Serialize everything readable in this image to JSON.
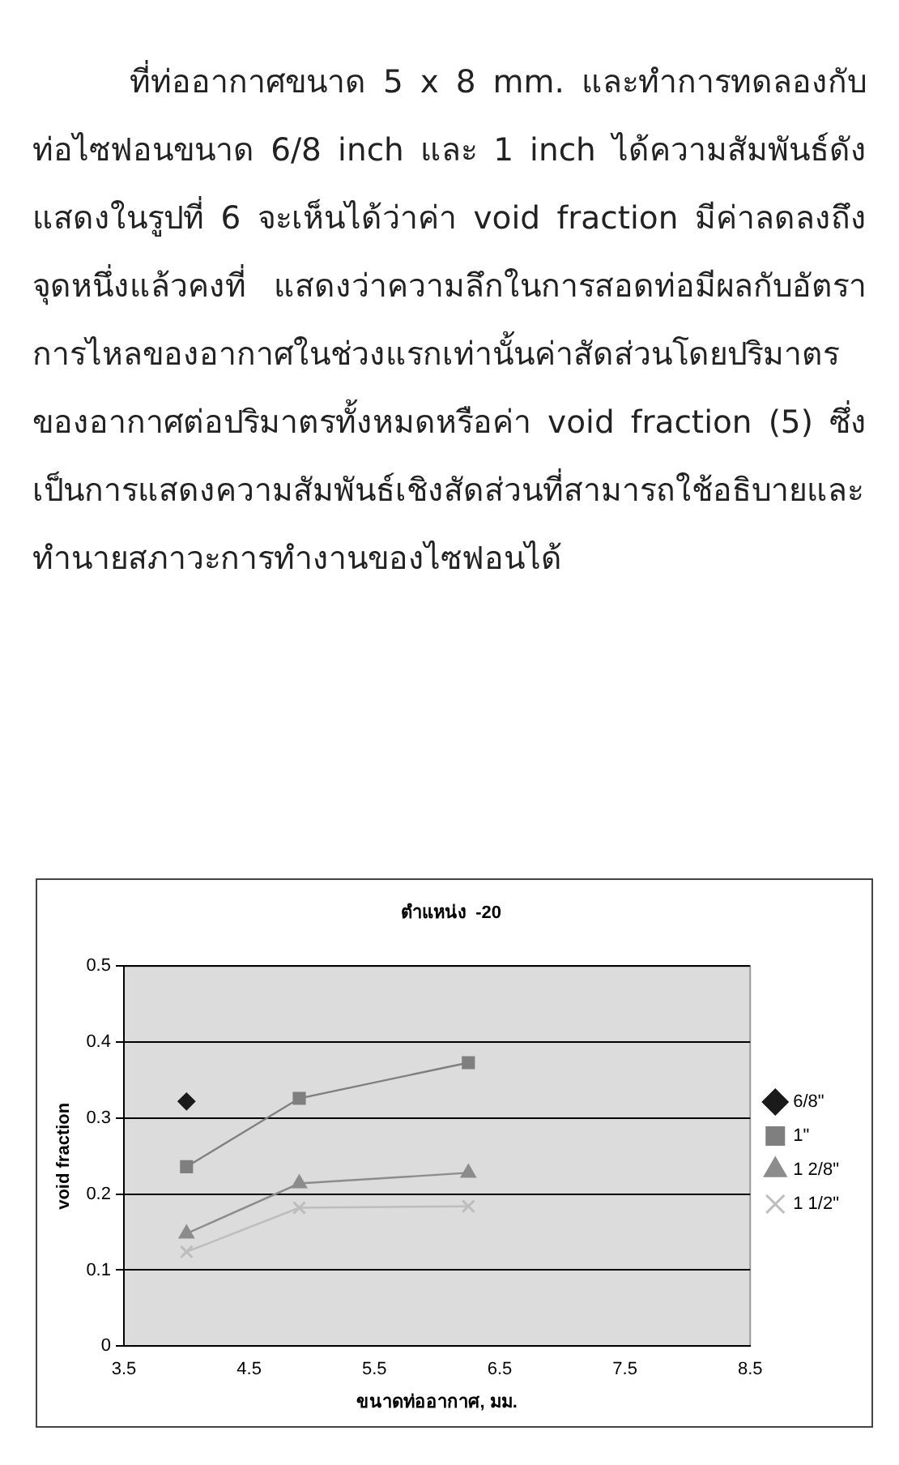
{
  "chart_data": {
    "type": "line",
    "title": "ตำแหน่ง  -20",
    "xlabel": "ขนาดท่ออากาศ, มม.",
    "ylabel": "void fraction",
    "annotations": [
      "ที่ท่ออากาศขนาด 5 x 8 mm. และทำการทดลองกับท่อไซฟอนขนาด 6/8 inch และ 1 inch ได้ความสัมพันธ์ดังแสดงในรูปที่ 6 จะเห็นได้ว่าค่า void fraction มีค่าลดลงถึงจุดหนึ่งแล้วคงที่ แสดงว่าความลึกในการสอดท่อมีผลกับอัตราการไหลของอากาศในช่วงแรกเท่านั้นค่าสัดส่วนโดยปริมาตรของอากาศต่อปริมาตรทั้งหมดหรือค่า void fraction (5) ซึ่งเป็นการแสดงความสัมพันธ์เชิงสัดส่วนที่สามารถใช้อธิบายและทำนายสภาวะการทำงานของไซฟอนได้"
    ],
    "x": [
      4.0,
      4.9,
      6.25
    ],
    "series": [
      {
        "name": "6/8\"",
        "color": "#1a1a1a",
        "marker": "diamond",
        "values": [
          0.322,
          null,
          null
        ]
      },
      {
        "name": "1\"",
        "color": "#7f7f7f",
        "marker": "square",
        "values": [
          0.236,
          0.326,
          0.373
        ]
      },
      {
        "name": "1 2/8\"",
        "color": "#8c8c8c",
        "marker": "triangle",
        "values": [
          0.148,
          0.214,
          0.228
        ]
      },
      {
        "name": "1 1/2\"",
        "color": "#bdbdbd",
        "marker": "cross",
        "values": [
          0.124,
          0.182,
          0.184
        ]
      }
    ],
    "xlim": [
      3.5,
      8.5
    ],
    "xticks": [
      3.5,
      4.5,
      5.5,
      6.5,
      7.5,
      8.5
    ],
    "ylim": [
      0,
      0.5
    ],
    "yticks": [
      0,
      0.1,
      0.2,
      0.3,
      0.4,
      0.5
    ],
    "grid": "y",
    "legend": "right"
  }
}
